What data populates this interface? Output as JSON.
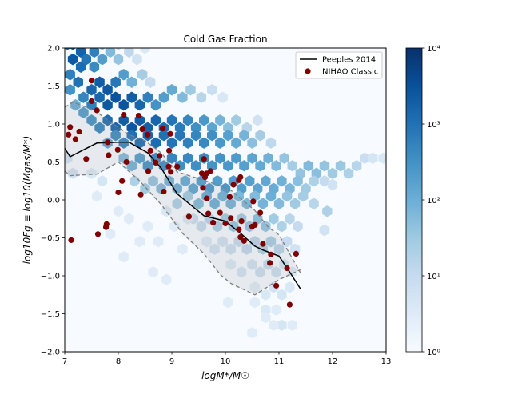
{
  "chart_data": {
    "type": "scatter",
    "title": "Cold Gas Fraction",
    "xlabel": "logM*/M☉",
    "ylabel": "log10Fg ≡ log10(Mgas/M*)",
    "xlim": [
      7,
      13
    ],
    "ylim": [
      -2.0,
      2.0
    ],
    "x_ticks": [
      "7",
      "8",
      "9",
      "10",
      "11",
      "12",
      "13"
    ],
    "y_ticks": [
      "−2.0",
      "−1.5",
      "−1.0",
      "−0.5",
      "0.0",
      "0.5",
      "1.0",
      "1.5",
      "2.0"
    ],
    "grid": false,
    "legend_position": "top-right",
    "legend": [
      "Peeples 2014",
      "NIHAO Classic"
    ],
    "colors": {
      "background": "#f7fbff",
      "line": "#000000",
      "band": "#7f7f7f",
      "points": "#800000",
      "cmap": [
        "#f7fbff",
        "#deebf7",
        "#c6dbef",
        "#9ecae1",
        "#6baed6",
        "#4292c6",
        "#2171b5",
        "#08519c",
        "#08306b"
      ]
    },
    "colorbar": {
      "scale": "log",
      "range": [
        1,
        10000
      ],
      "tick_labels": [
        "10⁰",
        "10¹",
        "10²",
        "10³",
        "10⁴"
      ]
    },
    "hexbin": [
      [
        7.05,
        2.05,
        1500
      ],
      [
        7.15,
        1.85,
        2500
      ],
      [
        7.15,
        2.05,
        2000
      ],
      [
        7.3,
        1.75,
        1200
      ],
      [
        7.3,
        1.95,
        1800
      ],
      [
        7.4,
        1.85,
        900
      ],
      [
        7.55,
        1.95,
        600
      ],
      [
        7.55,
        1.75,
        400
      ],
      [
        7.7,
        1.85,
        200
      ],
      [
        7.7,
        2.05,
        80
      ],
      [
        7.85,
        1.95,
        60
      ],
      [
        8.0,
        2.05,
        15
      ],
      [
        8.0,
        1.85,
        40
      ],
      [
        8.2,
        1.95,
        12
      ],
      [
        8.35,
        1.85,
        6
      ],
      [
        8.5,
        2.0,
        4
      ],
      [
        7.1,
        1.65,
        600
      ],
      [
        7.1,
        1.45,
        300
      ],
      [
        7.25,
        1.55,
        1000
      ],
      [
        7.35,
        1.35,
        500
      ],
      [
        7.5,
        1.45,
        1500
      ],
      [
        7.65,
        1.55,
        2000
      ],
      [
        7.8,
        1.45,
        2500
      ],
      [
        7.95,
        1.55,
        800
      ],
      [
        8.1,
        1.65,
        200
      ],
      [
        8.25,
        1.55,
        90
      ],
      [
        8.45,
        1.65,
        25
      ],
      [
        8.6,
        1.55,
        10
      ],
      [
        7.2,
        1.25,
        100
      ],
      [
        7.35,
        1.15,
        200
      ],
      [
        7.5,
        1.25,
        600
      ],
      [
        7.65,
        1.35,
        1500
      ],
      [
        7.8,
        1.25,
        2500
      ],
      [
        7.95,
        1.35,
        3000
      ],
      [
        8.1,
        1.25,
        2800
      ],
      [
        8.25,
        1.35,
        2000
      ],
      [
        8.4,
        1.25,
        1500
      ],
      [
        8.55,
        1.35,
        600
      ],
      [
        8.7,
        1.25,
        300
      ],
      [
        8.85,
        1.35,
        200
      ],
      [
        9.0,
        1.45,
        120
      ],
      [
        9.2,
        1.35,
        60
      ],
      [
        9.35,
        1.45,
        30
      ],
      [
        9.55,
        1.35,
        15
      ],
      [
        9.75,
        1.45,
        8
      ],
      [
        9.95,
        1.35,
        4
      ],
      [
        7.5,
        1.05,
        300
      ],
      [
        7.65,
        0.95,
        500
      ],
      [
        7.8,
        1.05,
        1200
      ],
      [
        7.95,
        0.95,
        1500
      ],
      [
        8.1,
        1.05,
        2000
      ],
      [
        8.25,
        0.95,
        2500
      ],
      [
        8.4,
        1.05,
        2000
      ],
      [
        8.55,
        0.95,
        1800
      ],
      [
        8.7,
        1.05,
        1500
      ],
      [
        8.85,
        0.95,
        1200
      ],
      [
        9.0,
        1.05,
        900
      ],
      [
        9.15,
        0.95,
        700
      ],
      [
        9.3,
        1.05,
        500
      ],
      [
        9.45,
        0.95,
        350
      ],
      [
        9.6,
        1.05,
        250
      ],
      [
        9.75,
        0.95,
        150
      ],
      [
        9.9,
        1.05,
        80
      ],
      [
        10.05,
        0.95,
        50
      ],
      [
        10.2,
        1.05,
        30
      ],
      [
        10.4,
        0.95,
        15
      ],
      [
        10.6,
        1.05,
        6
      ],
      [
        7.8,
        0.75,
        150
      ],
      [
        7.95,
        0.85,
        400
      ],
      [
        8.1,
        0.75,
        500
      ],
      [
        8.25,
        0.85,
        1000
      ],
      [
        8.4,
        0.75,
        1200
      ],
      [
        8.55,
        0.85,
        1500
      ],
      [
        8.7,
        0.75,
        1200
      ],
      [
        8.85,
        0.85,
        1000
      ],
      [
        9.0,
        0.75,
        900
      ],
      [
        9.15,
        0.85,
        800
      ],
      [
        9.3,
        0.75,
        600
      ],
      [
        9.45,
        0.85,
        500
      ],
      [
        9.6,
        0.75,
        450
      ],
      [
        9.75,
        0.85,
        350
      ],
      [
        9.9,
        0.75,
        250
      ],
      [
        10.05,
        0.85,
        180
      ],
      [
        10.2,
        0.75,
        120
      ],
      [
        10.35,
        0.85,
        80
      ],
      [
        10.5,
        0.75,
        50
      ],
      [
        10.65,
        0.85,
        25
      ],
      [
        10.85,
        0.75,
        12
      ],
      [
        8.1,
        0.55,
        60
      ],
      [
        8.25,
        0.45,
        80
      ],
      [
        8.4,
        0.55,
        200
      ],
      [
        8.55,
        0.45,
        300
      ],
      [
        8.7,
        0.55,
        500
      ],
      [
        8.85,
        0.45,
        400
      ],
      [
        9.0,
        0.55,
        500
      ],
      [
        9.15,
        0.45,
        350
      ],
      [
        9.3,
        0.55,
        450
      ],
      [
        9.45,
        0.45,
        350
      ],
      [
        9.6,
        0.55,
        400
      ],
      [
        9.75,
        0.45,
        300
      ],
      [
        9.9,
        0.55,
        300
      ],
      [
        10.05,
        0.45,
        250
      ],
      [
        10.2,
        0.55,
        220
      ],
      [
        10.35,
        0.45,
        180
      ],
      [
        10.5,
        0.55,
        150
      ],
      [
        10.65,
        0.45,
        120
      ],
      [
        10.8,
        0.55,
        90
      ],
      [
        10.95,
        0.45,
        60
      ],
      [
        11.1,
        0.55,
        40
      ],
      [
        11.25,
        0.45,
        25
      ],
      [
        11.4,
        0.35,
        40
      ],
      [
        11.55,
        0.45,
        60
      ],
      [
        11.7,
        0.35,
        50
      ],
      [
        11.85,
        0.45,
        40
      ],
      [
        12.0,
        0.35,
        30
      ],
      [
        12.15,
        0.45,
        35
      ],
      [
        12.3,
        0.35,
        20
      ],
      [
        12.45,
        0.45,
        15
      ],
      [
        12.6,
        0.55,
        8
      ],
      [
        12.75,
        0.55,
        5
      ],
      [
        12.95,
        0.55,
        4
      ],
      [
        8.3,
        0.25,
        20
      ],
      [
        8.5,
        0.15,
        30
      ],
      [
        8.65,
        0.25,
        40
      ],
      [
        8.8,
        0.15,
        60
      ],
      [
        8.95,
        0.25,
        80
      ],
      [
        9.1,
        0.15,
        100
      ],
      [
        9.25,
        0.25,
        120
      ],
      [
        9.4,
        0.15,
        150
      ],
      [
        9.55,
        0.25,
        200
      ],
      [
        9.7,
        0.15,
        250
      ],
      [
        9.85,
        0.25,
        200
      ],
      [
        10.0,
        0.15,
        250
      ],
      [
        10.15,
        0.25,
        220
      ],
      [
        10.3,
        0.15,
        200
      ],
      [
        10.45,
        0.25,
        180
      ],
      [
        10.6,
        0.15,
        150
      ],
      [
        10.75,
        0.25,
        130
      ],
      [
        10.9,
        0.15,
        110
      ],
      [
        11.05,
        0.25,
        90
      ],
      [
        11.2,
        0.15,
        70
      ],
      [
        11.35,
        0.25,
        50
      ],
      [
        11.5,
        0.15,
        30
      ],
      [
        11.65,
        0.25,
        20
      ],
      [
        11.85,
        0.25,
        10
      ],
      [
        12.0,
        0.2,
        6
      ],
      [
        9.1,
        -0.05,
        20
      ],
      [
        9.3,
        0.05,
        30
      ],
      [
        9.5,
        -0.05,
        60
      ],
      [
        9.65,
        0.05,
        120
      ],
      [
        9.8,
        -0.05,
        100
      ],
      [
        9.95,
        0.05,
        90
      ],
      [
        10.1,
        -0.05,
        80
      ],
      [
        10.25,
        0.05,
        70
      ],
      [
        10.4,
        -0.05,
        70
      ],
      [
        10.55,
        0.05,
        60
      ],
      [
        10.7,
        -0.05,
        80
      ],
      [
        10.85,
        0.05,
        100
      ],
      [
        11.0,
        -0.05,
        60
      ],
      [
        11.15,
        0.05,
        40
      ],
      [
        11.3,
        -0.05,
        30
      ],
      [
        11.45,
        0.05,
        25
      ],
      [
        11.65,
        -0.05,
        15
      ],
      [
        11.9,
        -0.15,
        20
      ],
      [
        9.4,
        -0.25,
        8
      ],
      [
        9.55,
        -0.35,
        10
      ],
      [
        9.7,
        -0.25,
        15
      ],
      [
        9.85,
        -0.35,
        20
      ],
      [
        10.0,
        -0.25,
        30
      ],
      [
        10.15,
        -0.35,
        40
      ],
      [
        10.3,
        -0.25,
        30
      ],
      [
        10.45,
        -0.35,
        40
      ],
      [
        10.6,
        -0.25,
        50
      ],
      [
        10.75,
        -0.35,
        40
      ],
      [
        10.9,
        -0.25,
        30
      ],
      [
        11.05,
        -0.35,
        20
      ],
      [
        11.2,
        -0.25,
        15
      ],
      [
        11.35,
        -0.35,
        10
      ],
      [
        11.85,
        -0.4,
        6
      ],
      [
        9.65,
        -0.55,
        4
      ],
      [
        9.8,
        -0.65,
        6
      ],
      [
        9.95,
        -0.55,
        6
      ],
      [
        10.1,
        -0.65,
        8
      ],
      [
        10.25,
        -0.55,
        10
      ],
      [
        10.4,
        -0.65,
        12
      ],
      [
        10.55,
        -0.55,
        15
      ],
      [
        10.7,
        -0.65,
        20
      ],
      [
        10.85,
        -0.55,
        25
      ],
      [
        11.0,
        -0.65,
        15
      ],
      [
        11.15,
        -0.55,
        10
      ],
      [
        11.3,
        -0.65,
        6
      ],
      [
        10.1,
        -0.85,
        4
      ],
      [
        10.3,
        -0.95,
        5
      ],
      [
        10.5,
        -0.85,
        6
      ],
      [
        10.65,
        -0.95,
        8
      ],
      [
        10.8,
        -0.85,
        10
      ],
      [
        10.95,
        -0.95,
        8
      ],
      [
        11.1,
        -0.85,
        6
      ],
      [
        11.25,
        -0.95,
        4
      ],
      [
        10.55,
        -1.15,
        3
      ],
      [
        10.75,
        -1.25,
        4
      ],
      [
        10.9,
        -1.15,
        6
      ],
      [
        11.05,
        -1.25,
        5
      ],
      [
        11.2,
        -1.15,
        4
      ],
      [
        10.05,
        -1.35,
        3
      ],
      [
        10.55,
        -1.35,
        3
      ],
      [
        10.75,
        -1.45,
        4
      ],
      [
        10.95,
        -1.45,
        3
      ],
      [
        11.05,
        -1.65,
        5
      ],
      [
        10.9,
        -1.65,
        3
      ],
      [
        11.25,
        -1.65,
        3
      ],
      [
        10.5,
        -1.75,
        3
      ],
      [
        10.75,
        -1.55,
        3
      ],
      [
        7.6,
        0.05,
        3
      ],
      [
        8.0,
        -0.15,
        3
      ],
      [
        8.1,
        -0.75,
        3
      ],
      [
        8.4,
        -0.55,
        3
      ],
      [
        8.65,
        -0.95,
        3
      ],
      [
        8.75,
        -0.55,
        3
      ],
      [
        8.9,
        -1.05,
        3
      ],
      [
        8.9,
        -0.15,
        4
      ],
      [
        9.05,
        -0.35,
        3
      ],
      [
        9.2,
        -0.65,
        3
      ],
      [
        9.3,
        -0.25,
        4
      ],
      [
        8.55,
        -0.35,
        3
      ],
      [
        8.2,
        -0.25,
        3
      ],
      [
        7.85,
        -0.45,
        3
      ],
      [
        7.7,
        0.25,
        5
      ],
      [
        7.5,
        0.35,
        4
      ],
      [
        7.15,
        0.35,
        6
      ],
      [
        7.05,
        0.55,
        5
      ],
      [
        11.85,
        -0.4,
        6
      ],
      [
        12.75,
        0.55,
        5
      ]
    ],
    "series": [
      {
        "name": "Peeples 2014",
        "type": "line",
        "x": [
          7.0,
          7.1,
          7.6,
          8.0,
          8.2,
          8.55,
          8.8,
          9.1,
          9.6,
          10.0,
          10.3,
          10.55,
          10.7,
          11.0,
          11.2,
          11.4
        ],
        "y": [
          0.68,
          0.57,
          0.75,
          0.76,
          0.76,
          0.62,
          0.42,
          0.08,
          -0.21,
          -0.28,
          -0.45,
          -0.61,
          -0.66,
          -0.74,
          -0.95,
          -1.17
        ]
      },
      {
        "type": "band-upper",
        "x": [
          7.0,
          7.15,
          7.55,
          7.95,
          8.2,
          8.5,
          8.8,
          9.1,
          9.5,
          9.85,
          10.1,
          10.55,
          10.8,
          11.0,
          11.4
        ],
        "y": [
          1.22,
          1.29,
          1.18,
          0.98,
          0.86,
          0.78,
          0.62,
          0.37,
          0.28,
          0.2,
          0.13,
          -0.14,
          -0.36,
          -0.46,
          -0.96
        ]
      },
      {
        "type": "band-lower",
        "x": [
          7.0,
          7.1,
          7.6,
          8.0,
          8.4,
          8.8,
          9.2,
          9.6,
          9.9,
          10.1,
          10.55,
          10.8,
          11.0,
          11.4
        ],
        "y": [
          0.38,
          0.32,
          0.34,
          0.5,
          0.25,
          -0.06,
          -0.44,
          -0.71,
          -0.98,
          -1.1,
          -1.25,
          -1.14,
          -1.05,
          -0.92
        ]
      },
      {
        "name": "NIHAO Classic",
        "type": "scatter",
        "x": [
          7.12,
          7.07,
          7.1,
          7.2,
          7.27,
          7.4,
          7.5,
          7.5,
          7.6,
          7.62,
          7.77,
          7.78,
          7.8,
          7.82,
          7.99,
          8.0,
          8.07,
          8.1,
          8.15,
          8.38,
          8.42,
          8.45,
          8.55,
          8.56,
          8.6,
          8.7,
          8.77,
          8.83,
          8.85,
          8.94,
          8.95,
          8.97,
          8.98,
          9.1,
          9.32,
          9.56,
          9.58,
          9.6,
          9.62,
          9.65,
          9.65,
          9.68,
          9.72,
          9.77,
          9.9,
          10.0,
          10.08,
          10.1,
          10.15,
          10.25,
          10.25,
          10.28,
          10.28,
          10.3,
          10.35,
          10.5,
          10.52,
          10.55,
          10.65,
          10.7,
          10.83,
          10.85,
          10.95,
          11.15,
          11.2,
          11.32
        ],
        "y": [
          -0.53,
          0.86,
          0.96,
          0.8,
          0.9,
          0.54,
          1.3,
          1.57,
          1.18,
          -0.45,
          -0.36,
          -0.32,
          0.76,
          0.59,
          0.66,
          0.1,
          0.25,
          1.12,
          0.5,
          1.11,
          0.07,
          0.93,
          0.86,
          0.38,
          0.65,
          0.49,
          0.58,
          0.94,
          0.11,
          0.44,
          0.65,
          0.87,
          0.37,
          0.44,
          -0.22,
          0.35,
          0.16,
          0.54,
          0.3,
          0.02,
          0.35,
          -0.18,
          0.38,
          -0.3,
          -0.17,
          -0.31,
          0.04,
          -0.24,
          0.2,
          -0.39,
          0.26,
          -0.49,
          0.3,
          -0.28,
          -0.54,
          -0.35,
          -0.02,
          -0.33,
          -0.17,
          -0.58,
          -0.83,
          -0.72,
          -1.13,
          -0.9,
          -1.38,
          -0.71
        ]
      }
    ]
  }
}
